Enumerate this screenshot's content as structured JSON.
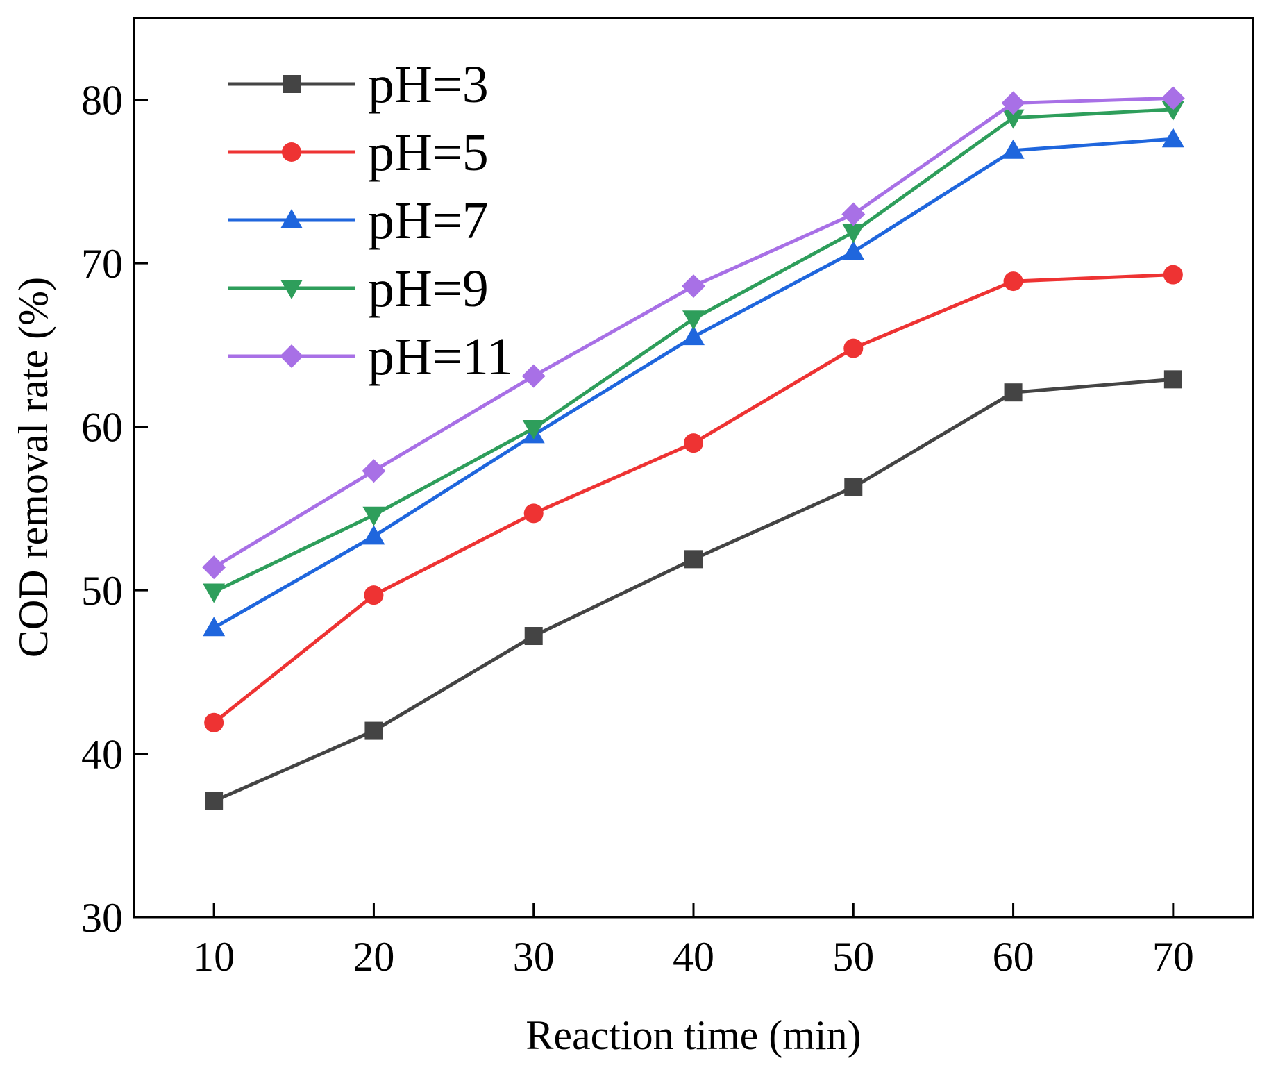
{
  "chart_data": {
    "type": "line",
    "xlabel": "Reaction time (min)",
    "ylabel": "COD removal rate (%)",
    "xlim": [
      5,
      75
    ],
    "ylim": [
      30,
      85
    ],
    "x_ticks": [
      10,
      20,
      30,
      40,
      50,
      60,
      70
    ],
    "y_ticks": [
      30,
      40,
      50,
      60,
      70,
      80
    ],
    "x": [
      10,
      20,
      30,
      40,
      50,
      60,
      70
    ],
    "grid": false,
    "legend_position": "top-left",
    "series": [
      {
        "name": "pH=3",
        "color": "#444444",
        "marker": "square",
        "values": [
          37.1,
          41.4,
          47.2,
          51.9,
          56.3,
          62.1,
          62.9
        ]
      },
      {
        "name": "pH=5",
        "color": "#ee3333",
        "marker": "circle",
        "values": [
          41.9,
          49.7,
          54.7,
          59.0,
          64.8,
          68.9,
          69.3
        ]
      },
      {
        "name": "pH=7",
        "color": "#1f66dd",
        "marker": "triangle-up",
        "values": [
          47.7,
          53.3,
          59.5,
          65.5,
          70.7,
          76.9,
          77.6
        ]
      },
      {
        "name": "pH=9",
        "color": "#2e9e5b",
        "marker": "triangle-down",
        "values": [
          49.9,
          54.6,
          59.9,
          66.6,
          71.9,
          78.9,
          79.4
        ]
      },
      {
        "name": "pH=11",
        "color": "#a870e6",
        "marker": "diamond",
        "values": [
          51.4,
          57.3,
          63.1,
          68.6,
          73.0,
          79.8,
          80.1
        ]
      }
    ]
  }
}
